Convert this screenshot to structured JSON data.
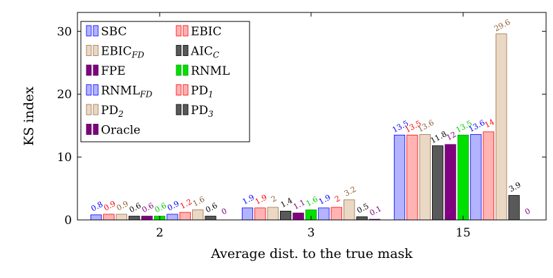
{
  "chart_data": {
    "type": "bar",
    "xlabel": "Average dist. to the true mask",
    "ylabel": "KS index",
    "ylim": [
      0,
      33
    ],
    "yticks": [
      0,
      10,
      20,
      30
    ],
    "categories": [
      "2",
      "3",
      "15"
    ],
    "legend_position": "top-left",
    "series": [
      {
        "name": "SBC",
        "sub": "",
        "fill": "#b3b3ff",
        "stroke": "#0000ff",
        "label_color": "#0000ff",
        "values": [
          0.8,
          1.9,
          13.5
        ]
      },
      {
        "name": "EBIC",
        "sub": "",
        "fill": "#ffb3b3",
        "stroke": "#ff0000",
        "label_color": "#ff0000",
        "values": [
          0.9,
          1.9,
          13.5
        ]
      },
      {
        "name": "EBIC",
        "sub": "FD",
        "fill": "#ead8c4",
        "stroke": "#99704d",
        "label_color": "#8c5b32",
        "values": [
          0.9,
          2,
          13.6
        ]
      },
      {
        "name": "AIC",
        "sub": "C",
        "fill": "#595959",
        "stroke": "#000000",
        "label_color": "#000000",
        "values": [
          0.6,
          1.4,
          11.8
        ]
      },
      {
        "name": "FPE",
        "sub": "",
        "fill": "#800080",
        "stroke": "#4d004d",
        "label_color": "#800080",
        "values": [
          0.6,
          1.1,
          12
        ]
      },
      {
        "name": "RNML",
        "sub": "",
        "fill": "#00e000",
        "stroke": "#00a000",
        "label_color": "#00cc00",
        "values": [
          0.6,
          1.6,
          13.5
        ]
      },
      {
        "name": "RNML",
        "sub": "FD",
        "fill": "#b3b3ff",
        "stroke": "#0000ff",
        "label_color": "#0000ff",
        "values": [
          0.9,
          1.9,
          13.6
        ]
      },
      {
        "name": "PD",
        "sub": "1",
        "fill": "#ffb3b3",
        "stroke": "#ff0000",
        "label_color": "#ff0000",
        "values": [
          1.2,
          2,
          14
        ]
      },
      {
        "name": "PD",
        "sub": "2",
        "fill": "#ead8c4",
        "stroke": "#99704d",
        "label_color": "#8c5b32",
        "values": [
          1.6,
          3.2,
          29.6
        ]
      },
      {
        "name": "PD",
        "sub": "3",
        "fill": "#595959",
        "stroke": "#000000",
        "label_color": "#000000",
        "values": [
          0.6,
          0.5,
          3.9
        ]
      },
      {
        "name": "Oracle",
        "sub": "",
        "fill": "#800080",
        "stroke": "#4d004d",
        "label_color": "#800080",
        "values": [
          0,
          0.1,
          0
        ]
      }
    ]
  }
}
